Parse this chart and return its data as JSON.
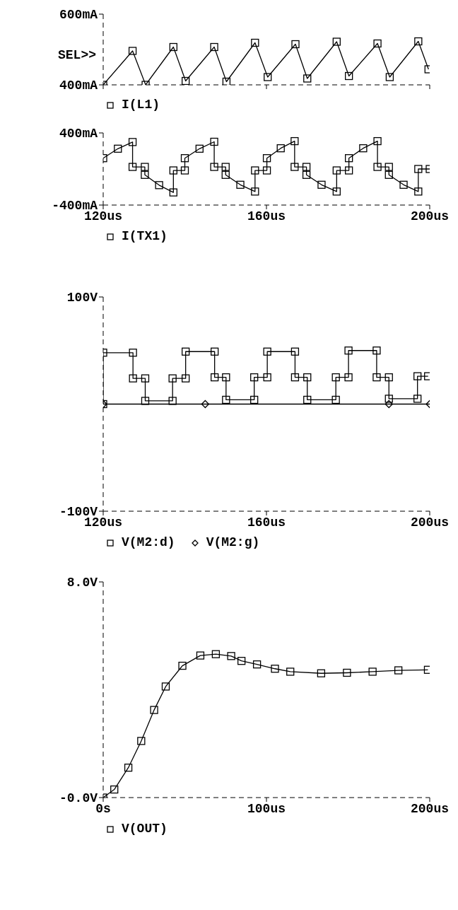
{
  "chart_data": [
    {
      "type": "line",
      "annotations": [
        "SEL>>"
      ],
      "xlim": [
        120,
        200
      ],
      "xticks": [
        {
          "value": 120,
          "label": null
        },
        {
          "value": 160,
          "label": null
        },
        {
          "value": 200,
          "label": null
        }
      ],
      "ylim": [
        400,
        600
      ],
      "yticks": [
        {
          "value": 400,
          "label": "400mA"
        },
        {
          "value": 600,
          "label": "600mA"
        }
      ],
      "tick_labels": "y",
      "legend": "bottom",
      "series": [
        {
          "name": "I(L1)",
          "color": "#000000",
          "marker": "square",
          "x": [
            120,
            127.2,
            130.4,
            137.2,
            140.2,
            147.2,
            150.2,
            157.2,
            160.3,
            167.1,
            170,
            177.2,
            180.2,
            187.2,
            190.2,
            197.2,
            199.7
          ],
          "values": [
            400,
            496,
            400,
            507,
            411,
            507,
            409,
            519,
            422,
            515,
            418,
            522,
            425,
            517,
            422,
            523,
            444
          ]
        }
      ]
    },
    {
      "type": "line",
      "xlim": [
        120,
        200
      ],
      "xticks": [
        {
          "value": 120,
          "label": "120us"
        },
        {
          "value": 160,
          "label": "160us"
        },
        {
          "value": 200,
          "label": "200us"
        }
      ],
      "ylim": [
        -400,
        400
      ],
      "yticks": [
        {
          "value": -400,
          "label": "-400mA"
        },
        {
          "value": 400,
          "label": "400mA"
        }
      ],
      "legend": "bottom",
      "series": [
        {
          "name": "I(TX1)",
          "color": "#000000",
          "marker": "square",
          "x": [
            120,
            123.6,
            127.2,
            127.2,
            130.2,
            130.2,
            133.7,
            137.2,
            137.2,
            140,
            140,
            143.6,
            147.2,
            147.2,
            150,
            150,
            153.6,
            157.2,
            157.2,
            160.1,
            160.1,
            163.5,
            166.9,
            166.9,
            169.8,
            169.8,
            173.5,
            177.2,
            177.2,
            180.2,
            180.2,
            183.7,
            187.2,
            187.2,
            190,
            190,
            193.6,
            197.2,
            197.2,
            200
          ],
          "values": [
            120,
            225,
            299,
            23,
            23,
            -65,
            -179,
            -260,
            -16,
            -16,
            120,
            225,
            302,
            23,
            23,
            -65,
            -175,
            -250,
            -16,
            -16,
            120,
            230,
            309,
            23,
            23,
            -65,
            -175,
            -250,
            -16,
            -16,
            120,
            230,
            309,
            23,
            23,
            -65,
            -175,
            -250,
            0,
            0
          ]
        }
      ]
    },
    {
      "type": "line",
      "xlim": [
        120,
        200
      ],
      "xticks": [
        {
          "value": 120,
          "label": "120us"
        },
        {
          "value": 160,
          "label": "160us"
        },
        {
          "value": 200,
          "label": "200us"
        }
      ],
      "ylim": [
        -100,
        100
      ],
      "yticks": [
        {
          "value": -100,
          "label": "-100V"
        },
        {
          "value": 100,
          "label": "100V"
        }
      ],
      "legend": "bottom",
      "series": [
        {
          "name": "V(M2:d)",
          "color": "#000000",
          "marker": "square",
          "x": [
            120,
            120,
            127.3,
            127.3,
            130.3,
            130.3,
            137,
            137,
            140.2,
            140.2,
            147.3,
            147.3,
            150.1,
            150.1,
            157,
            157,
            160.2,
            160.2,
            167,
            167,
            170,
            170,
            177,
            177,
            180.1,
            180.1,
            187,
            187,
            190,
            190,
            197,
            197,
            199.6
          ],
          "values": [
            0,
            48,
            48,
            24,
            24,
            3,
            3,
            24,
            24,
            49,
            49,
            25,
            25,
            4,
            4,
            25,
            25,
            49,
            49,
            25,
            25,
            4,
            4,
            25,
            25,
            50,
            50,
            25,
            25,
            5,
            5,
            26,
            26
          ]
        },
        {
          "name": "V(M2:g)",
          "color": "#000000",
          "marker": "diamond",
          "x": [
            120,
            145,
            190,
            200
          ],
          "values": [
            0,
            0,
            0,
            0
          ]
        }
      ]
    },
    {
      "type": "line",
      "xlim": [
        0,
        200
      ],
      "xticks": [
        {
          "value": 0,
          "label": "0s"
        },
        {
          "value": 100,
          "label": "100us"
        },
        {
          "value": 200,
          "label": "200us"
        }
      ],
      "ylim": [
        0,
        8
      ],
      "yticks": [
        {
          "value": 0,
          "label": "-0.0V"
        },
        {
          "value": 8,
          "label": "8.0V"
        }
      ],
      "legend": "bottom",
      "series": [
        {
          "name": "V(OUT)",
          "color": "#000000",
          "marker": "square",
          "x": [
            0,
            6.8,
            15.4,
            23.3,
            31.2,
            38.3,
            48.5,
            59.5,
            69,
            78.4,
            84.7,
            94.2,
            105.2,
            114.6,
            133.5,
            149.3,
            165,
            180.8,
            198.9
          ],
          "values": [
            0,
            0.3,
            1.11,
            2.1,
            3.25,
            4.12,
            4.89,
            5.27,
            5.32,
            5.25,
            5.07,
            4.94,
            4.78,
            4.67,
            4.61,
            4.63,
            4.67,
            4.72,
            4.74
          ]
        }
      ]
    }
  ]
}
